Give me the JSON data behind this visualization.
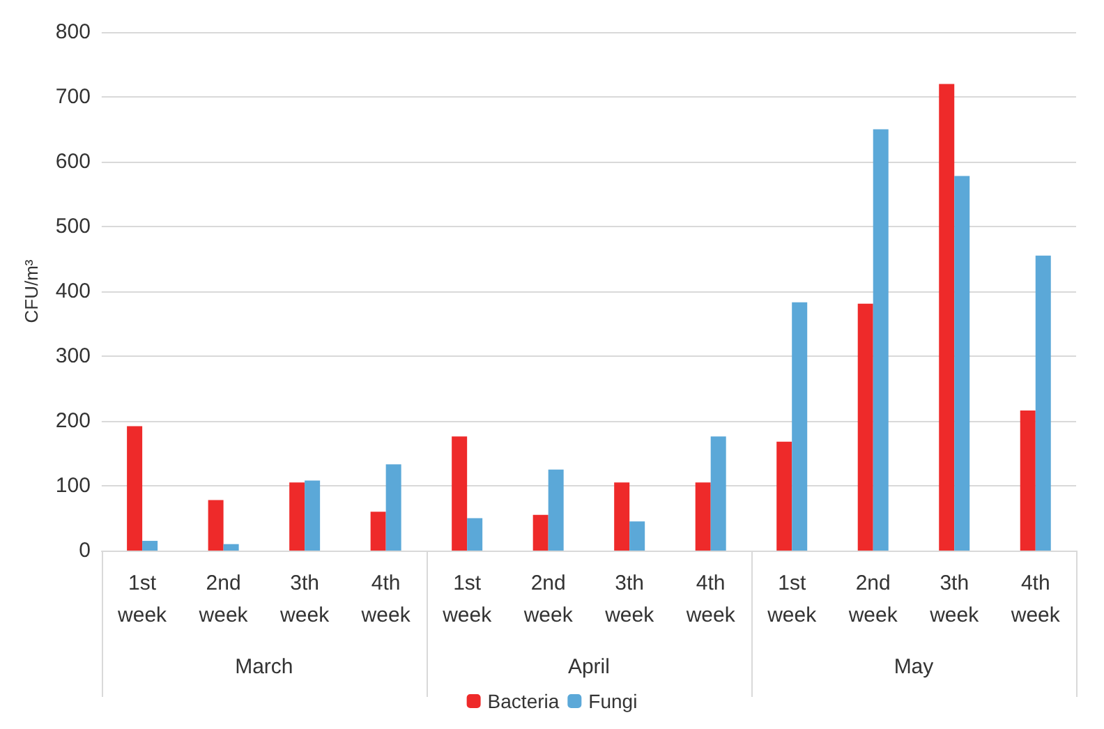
{
  "chart_data": {
    "type": "bar",
    "ylabel": "CFU/m³",
    "categories": [
      "1st\nweek",
      "2nd\nweek",
      "3th\nweek",
      "4th\nweek",
      "1st\nweek",
      "2nd\nweek",
      "3th\nweek",
      "4th\nweek",
      "1st\nweek",
      "2nd\nweek",
      "3th\nweek",
      "4th\nweek"
    ],
    "series": [
      {
        "name": "Bacteria",
        "color": "#ee2a2a",
        "values": [
          192,
          78,
          105,
          60,
          176,
          55,
          105,
          105,
          168,
          381,
          720,
          216
        ]
      },
      {
        "name": "Fungi",
        "color": "#5ba8d8",
        "values": [
          15,
          10,
          108,
          133,
          50,
          125,
          45,
          176,
          383,
          650,
          578,
          455
        ]
      }
    ],
    "annotations": [
      "March",
      "April",
      "May"
    ],
    "ylim": [
      0,
      800
    ],
    "yticks": [
      0,
      100,
      200,
      300,
      400,
      500,
      600,
      700,
      800
    ],
    "grid": "y",
    "legend": "bottom"
  }
}
